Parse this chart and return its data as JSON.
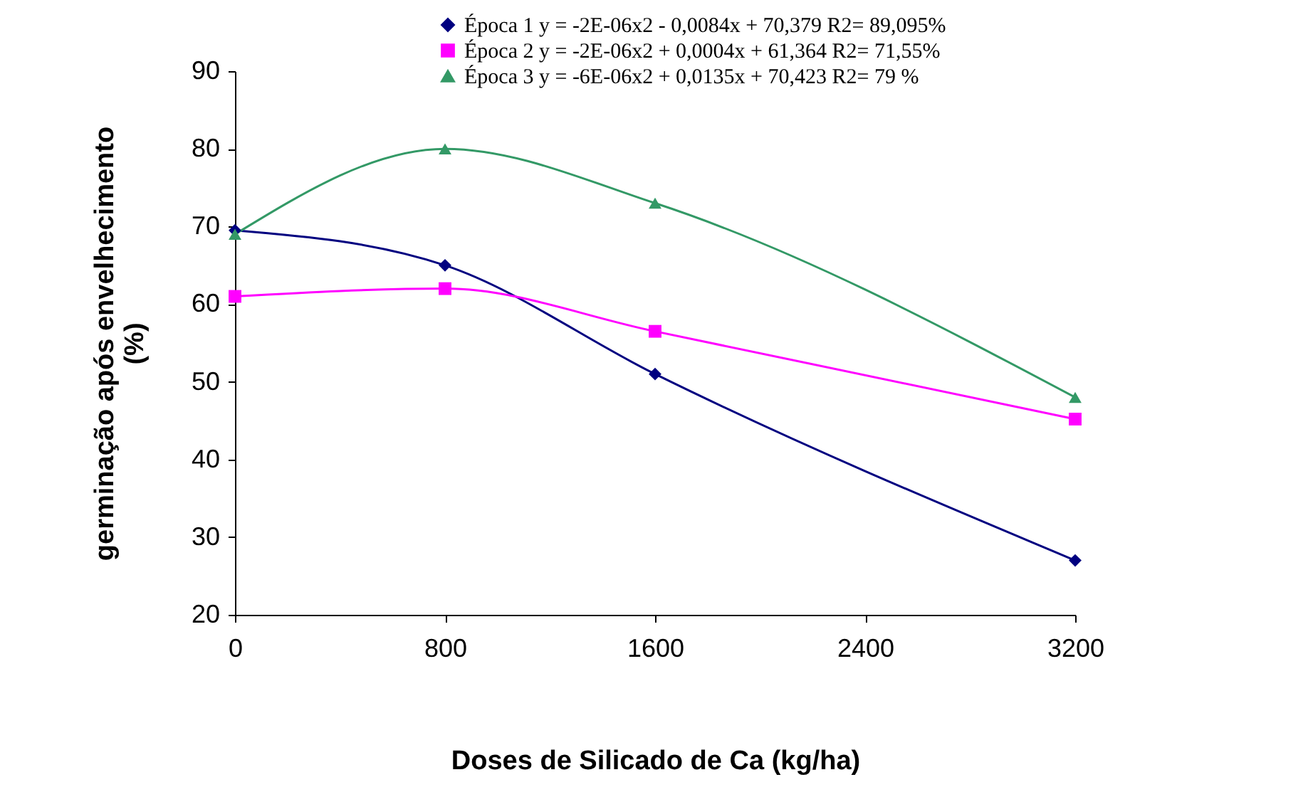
{
  "chart_data": {
    "type": "line",
    "xlabel": "Doses de Silicado de Ca (kg/ha)",
    "ylabel": "germinação após envelhecimento (%)",
    "x": [
      0,
      800,
      1600,
      3200
    ],
    "series": [
      {
        "name": "Época 1 y = -2E-06x2 - 0,0084x + 70,379 R2= 89,095%",
        "color": "#000080",
        "marker": "diamond",
        "values": [
          69.5,
          65,
          51,
          27
        ]
      },
      {
        "name": "Época 2 y = -2E-06x2 + 0,0004x + 61,364 R2= 71,55%",
        "color": "#ff00ff",
        "marker": "square",
        "values": [
          61,
          62,
          56.5,
          45.2
        ]
      },
      {
        "name": "Época 3 y = -6E-06x2 + 0,0135x + 70,423 R2= 79 %",
        "color": "#339966",
        "marker": "triangle",
        "values": [
          69,
          80,
          73,
          48
        ]
      }
    ],
    "xlim": [
      0,
      3200
    ],
    "xticks": [
      0,
      800,
      1600,
      2400,
      3200
    ],
    "ylim": [
      20,
      90
    ],
    "yticks": [
      20,
      30,
      40,
      50,
      60,
      70,
      80,
      90
    ],
    "grid": false,
    "legend": "top right",
    "line_style": "solid"
  }
}
